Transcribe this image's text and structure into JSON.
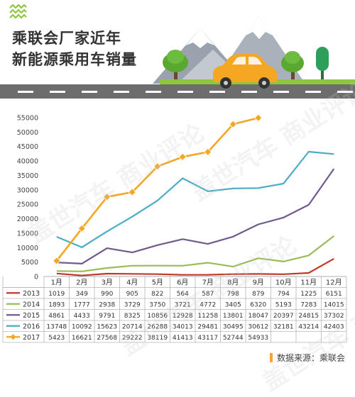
{
  "title": {
    "line1": "乘联会厂家近年",
    "line2": "新能源乘用车销量"
  },
  "source_label": "数据来源：乘联会",
  "watermark": "盖世汽车 商业评论",
  "colors": {
    "banner_bg": "#ffffff",
    "road": "#6d6d6d",
    "grass": "#8ec63f",
    "accent": "#f5a623"
  },
  "icons": [
    "wave-icon",
    "mountain-icon",
    "tree-icon",
    "car-icon"
  ],
  "chart_data": {
    "type": "line",
    "categories": [
      "1月",
      "2月",
      "3月",
      "4月",
      "5月",
      "6月",
      "7月",
      "8月",
      "9月",
      "10月",
      "11月",
      "12月"
    ],
    "y_ticks": [
      "0",
      "5000",
      "10000",
      "15000",
      "20000",
      "25000",
      "30000",
      "35000",
      "40000",
      "45000",
      "50000",
      "55000"
    ],
    "ylim": [
      0,
      55000
    ],
    "grid": false,
    "legend": "table-bottom",
    "series": [
      {
        "name": "2013",
        "color": "#c0392b",
        "marker": "none",
        "values": [
          1019,
          349,
          990,
          905,
          822,
          564,
          587,
          798,
          879,
          794,
          1225,
          6151
        ]
      },
      {
        "name": "2014",
        "color": "#9bbb59",
        "marker": "none",
        "values": [
          1893,
          1777,
          2938,
          3729,
          3750,
          3721,
          4772,
          3405,
          6320,
          5193,
          7283,
          14015
        ]
      },
      {
        "name": "2015",
        "color": "#6f5a8e",
        "marker": "none",
        "values": [
          4861,
          4433,
          9791,
          8325,
          10856,
          12928,
          11258,
          13801,
          18047,
          20397,
          24815,
          37302
        ]
      },
      {
        "name": "2016",
        "color": "#4bacc6",
        "marker": "none",
        "values": [
          13748,
          10092,
          15623,
          20714,
          26288,
          34013,
          29481,
          30495,
          30612,
          32181,
          43214,
          42403
        ]
      },
      {
        "name": "2017",
        "color": "#f5a623",
        "marker": "diamond",
        "values": [
          5423,
          16621,
          27568,
          29222,
          38119,
          41413,
          43117,
          52744,
          54933,
          null,
          null,
          null
        ]
      }
    ]
  }
}
